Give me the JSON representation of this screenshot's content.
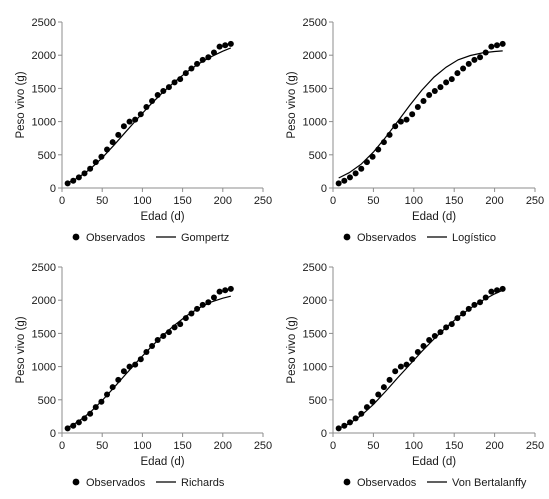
{
  "chart_data": [
    {
      "type": "scatter",
      "xlabel": "Edad (d)",
      "ylabel": "Peso vivo (g)",
      "xlim": [
        0,
        250
      ],
      "ylim": [
        0,
        2500
      ],
      "xticks": [
        "0",
        "50",
        "100",
        "150",
        "200",
        "250"
      ],
      "yticks": [
        "0",
        "500",
        "1000",
        "1500",
        "2000",
        "2500"
      ],
      "grid": false,
      "legend": "bottom",
      "series": [
        {
          "name": "Observados",
          "kind": "points",
          "x": [
            7,
            14,
            21,
            28,
            35,
            42,
            49,
            56,
            63,
            70,
            77,
            84,
            91,
            98,
            105,
            112,
            119,
            126,
            133,
            140,
            147,
            154,
            161,
            168,
            175,
            182,
            189,
            196,
            203,
            210
          ],
          "y": [
            70,
            110,
            160,
            220,
            290,
            390,
            470,
            580,
            690,
            800,
            930,
            1000,
            1030,
            1110,
            1220,
            1310,
            1400,
            1460,
            1520,
            1590,
            1640,
            1730,
            1800,
            1870,
            1930,
            1970,
            2040,
            2130,
            2150,
            2170
          ]
        },
        {
          "name": "Gompertz",
          "kind": "line",
          "x": [
            7,
            20,
            35,
            50,
            65,
            80,
            95,
            110,
            125,
            140,
            155,
            170,
            185,
            200,
            210
          ],
          "y": [
            75,
            155,
            285,
            455,
            650,
            855,
            1060,
            1255,
            1435,
            1600,
            1745,
            1870,
            1975,
            2060,
            2110
          ]
        }
      ]
    },
    {
      "type": "scatter",
      "xlabel": "Edad (d)",
      "ylabel": "Peso vivo (g)",
      "xlim": [
        0,
        250
      ],
      "ylim": [
        0,
        2500
      ],
      "xticks": [
        "0",
        "50",
        "100",
        "150",
        "200",
        "250"
      ],
      "yticks": [
        "0",
        "500",
        "1000",
        "1500",
        "2000",
        "2500"
      ],
      "grid": false,
      "legend": "bottom",
      "series": [
        {
          "name": "Observados",
          "kind": "points",
          "x": [
            7,
            14,
            21,
            28,
            35,
            42,
            49,
            56,
            63,
            70,
            77,
            84,
            91,
            98,
            105,
            112,
            119,
            126,
            133,
            140,
            147,
            154,
            161,
            168,
            175,
            182,
            189,
            196,
            203,
            210
          ],
          "y": [
            70,
            110,
            160,
            220,
            290,
            390,
            470,
            580,
            690,
            800,
            930,
            1000,
            1030,
            1110,
            1220,
            1310,
            1400,
            1460,
            1520,
            1590,
            1640,
            1730,
            1800,
            1870,
            1930,
            1970,
            2040,
            2130,
            2150,
            2170
          ]
        },
        {
          "name": "Logístico",
          "kind": "line",
          "x": [
            7,
            20,
            35,
            50,
            65,
            80,
            95,
            110,
            125,
            140,
            155,
            170,
            185,
            200,
            210
          ],
          "y": [
            150,
            230,
            360,
            540,
            760,
            1000,
            1245,
            1475,
            1670,
            1820,
            1930,
            1995,
            2035,
            2055,
            2065
          ]
        }
      ]
    },
    {
      "type": "scatter",
      "xlabel": "Edad (d)",
      "ylabel": "Peso vivo (g)",
      "xlim": [
        0,
        250
      ],
      "ylim": [
        0,
        2500
      ],
      "xticks": [
        "0",
        "50",
        "100",
        "150",
        "200",
        "250"
      ],
      "yticks": [
        "0",
        "500",
        "1000",
        "1500",
        "2000",
        "2500"
      ],
      "grid": false,
      "legend": "bottom",
      "series": [
        {
          "name": "Observados",
          "kind": "points",
          "x": [
            7,
            14,
            21,
            28,
            35,
            42,
            49,
            56,
            63,
            70,
            77,
            84,
            91,
            98,
            105,
            112,
            119,
            126,
            133,
            140,
            147,
            154,
            161,
            168,
            175,
            182,
            189,
            196,
            203,
            210
          ],
          "y": [
            70,
            110,
            160,
            220,
            290,
            390,
            470,
            580,
            690,
            800,
            930,
            1000,
            1030,
            1110,
            1220,
            1310,
            1400,
            1460,
            1520,
            1590,
            1640,
            1730,
            1800,
            1870,
            1930,
            1970,
            2040,
            2130,
            2150,
            2170
          ]
        },
        {
          "name": "Richards",
          "kind": "line",
          "x": [
            7,
            20,
            35,
            50,
            65,
            80,
            95,
            110,
            125,
            140,
            155,
            170,
            185,
            200,
            210
          ],
          "y": [
            80,
            170,
            310,
            490,
            690,
            895,
            1095,
            1285,
            1465,
            1625,
            1765,
            1880,
            1970,
            2030,
            2060
          ]
        }
      ]
    },
    {
      "type": "scatter",
      "xlabel": "Edad (d)",
      "ylabel": "Peso vivo (g)",
      "xlim": [
        0,
        250
      ],
      "ylim": [
        0,
        2500
      ],
      "xticks": [
        "0",
        "50",
        "100",
        "150",
        "200",
        "250"
      ],
      "yticks": [
        "0",
        "500",
        "1000",
        "1500",
        "2000",
        "2500"
      ],
      "grid": false,
      "legend": "bottom",
      "series": [
        {
          "name": "Observados",
          "kind": "points",
          "x": [
            7,
            14,
            21,
            28,
            35,
            42,
            49,
            56,
            63,
            70,
            77,
            84,
            91,
            98,
            105,
            112,
            119,
            126,
            133,
            140,
            147,
            154,
            161,
            168,
            175,
            182,
            189,
            196,
            203,
            210
          ],
          "y": [
            70,
            110,
            160,
            220,
            290,
            390,
            470,
            580,
            690,
            800,
            930,
            1000,
            1030,
            1110,
            1220,
            1310,
            1400,
            1460,
            1520,
            1590,
            1640,
            1730,
            1800,
            1870,
            1930,
            1970,
            2040,
            2130,
            2150,
            2170
          ]
        },
        {
          "name": "Von Bertalanffy",
          "kind": "line",
          "x": [
            7,
            20,
            35,
            50,
            65,
            80,
            95,
            110,
            125,
            140,
            155,
            170,
            185,
            200,
            210
          ],
          "y": [
            70,
            140,
            265,
            430,
            625,
            830,
            1030,
            1230,
            1415,
            1590,
            1745,
            1880,
            1995,
            2095,
            2150
          ]
        }
      ]
    }
  ]
}
